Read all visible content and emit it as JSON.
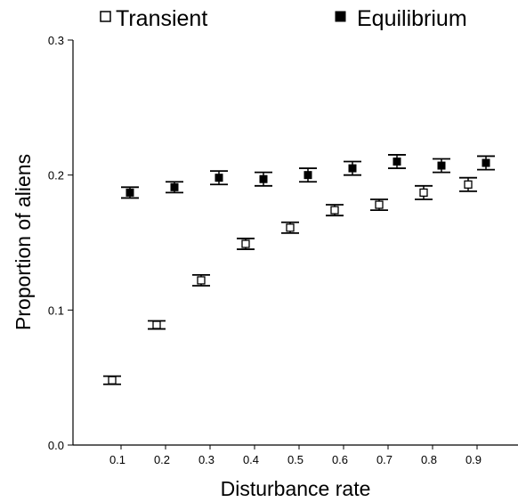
{
  "chart_data": {
    "type": "scatter",
    "xlabel": "Disturbance rate",
    "ylabel": "Proportion of aliens",
    "xlim": [
      0.0,
      1.0
    ],
    "ylim": [
      0.0,
      0.3
    ],
    "x_ticks": [
      "0.1",
      "0.2",
      "0.3",
      "0.4",
      "0.5",
      "0.6",
      "0.7",
      "0.8",
      "0.9"
    ],
    "y_ticks": [
      "0.0",
      "0.1",
      "0.2",
      "0.3"
    ],
    "grid": false,
    "legend_position": "top",
    "error_bars": true,
    "series": [
      {
        "name": "Transient",
        "marker": "open-square",
        "x": [
          0.1,
          0.2,
          0.3,
          0.4,
          0.5,
          0.6,
          0.7,
          0.8,
          0.9
        ],
        "y": [
          0.048,
          0.089,
          0.122,
          0.149,
          0.161,
          0.174,
          0.178,
          0.187,
          0.193
        ],
        "err": [
          0.003,
          0.003,
          0.004,
          0.004,
          0.004,
          0.004,
          0.004,
          0.005,
          0.005
        ]
      },
      {
        "name": "Equilibrium",
        "marker": "filled-square",
        "x": [
          0.1,
          0.2,
          0.3,
          0.4,
          0.5,
          0.6,
          0.7,
          0.8,
          0.9
        ],
        "y": [
          0.187,
          0.191,
          0.198,
          0.197,
          0.2,
          0.205,
          0.21,
          0.207,
          0.209
        ],
        "err": [
          0.004,
          0.004,
          0.005,
          0.005,
          0.005,
          0.005,
          0.005,
          0.005,
          0.005
        ]
      }
    ]
  }
}
